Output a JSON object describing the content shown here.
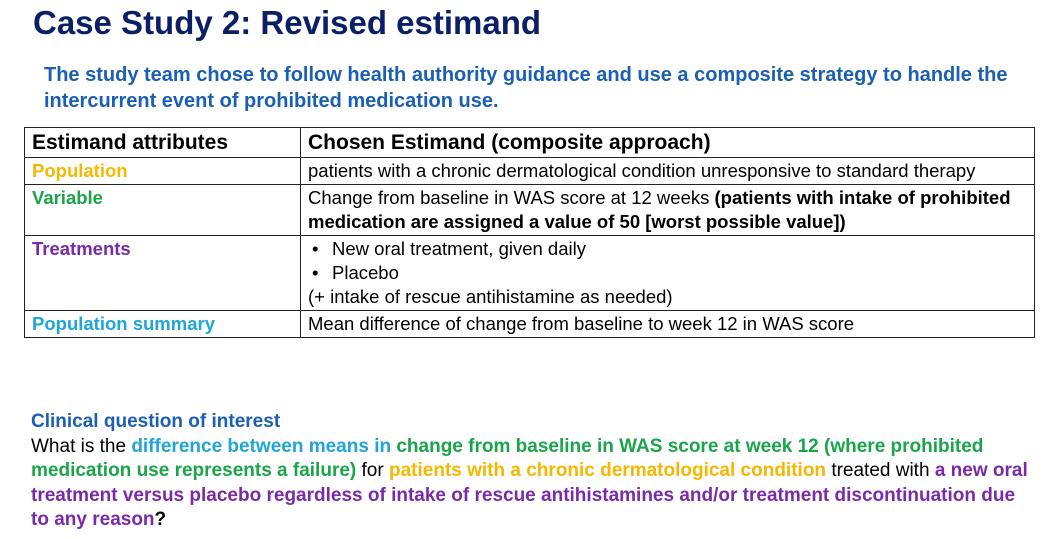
{
  "title": "Case Study 2: Revised estimand",
  "intro": "The study team chose to follow health authority guidance and use a composite strategy to handle the intercurrent event of prohibited medication use.",
  "table": {
    "headers": [
      "Estimand attributes",
      "Chosen Estimand (composite approach)"
    ],
    "population": {
      "label": "Population",
      "value": "patients with a chronic dermatological condition unresponsive to standard therapy"
    },
    "variable": {
      "label": "Variable",
      "value": "Change from baseline in WAS score at 12 weeks",
      "value_bold": "(patients with intake of prohibited medication are assigned a value of 50 [worst possible value])"
    },
    "treatments": {
      "label": "Treatments",
      "items": [
        "New oral treatment, given daily",
        "Placebo"
      ],
      "note": "(+ intake of rescue antihistamine as needed)"
    },
    "summary": {
      "label": "Population summary",
      "value": "Mean difference of change from baseline to week 12 in WAS score"
    }
  },
  "clinical_question": {
    "title": "Clinical question of interest",
    "p1": "What is the",
    "p2": "difference between means in",
    "p3": "change from baseline in WAS score at week 12 (where prohibited medication use represents a failure)",
    "p4": "for",
    "p5": "patients with a chronic dermatological condition",
    "p6": "treated with",
    "p7": "a new oral treatment versus placebo regardless of intake of rescue antihistamines and/or treatment discontinuation due to any reason",
    "p8": "?"
  },
  "colors": {
    "title": "#0b1f66",
    "accent_blue": "#1a5fb4",
    "population": "#f5b800",
    "variable": "#1aa54a",
    "treatments": "#7a2aa8",
    "summary": "#1fa5d8"
  }
}
